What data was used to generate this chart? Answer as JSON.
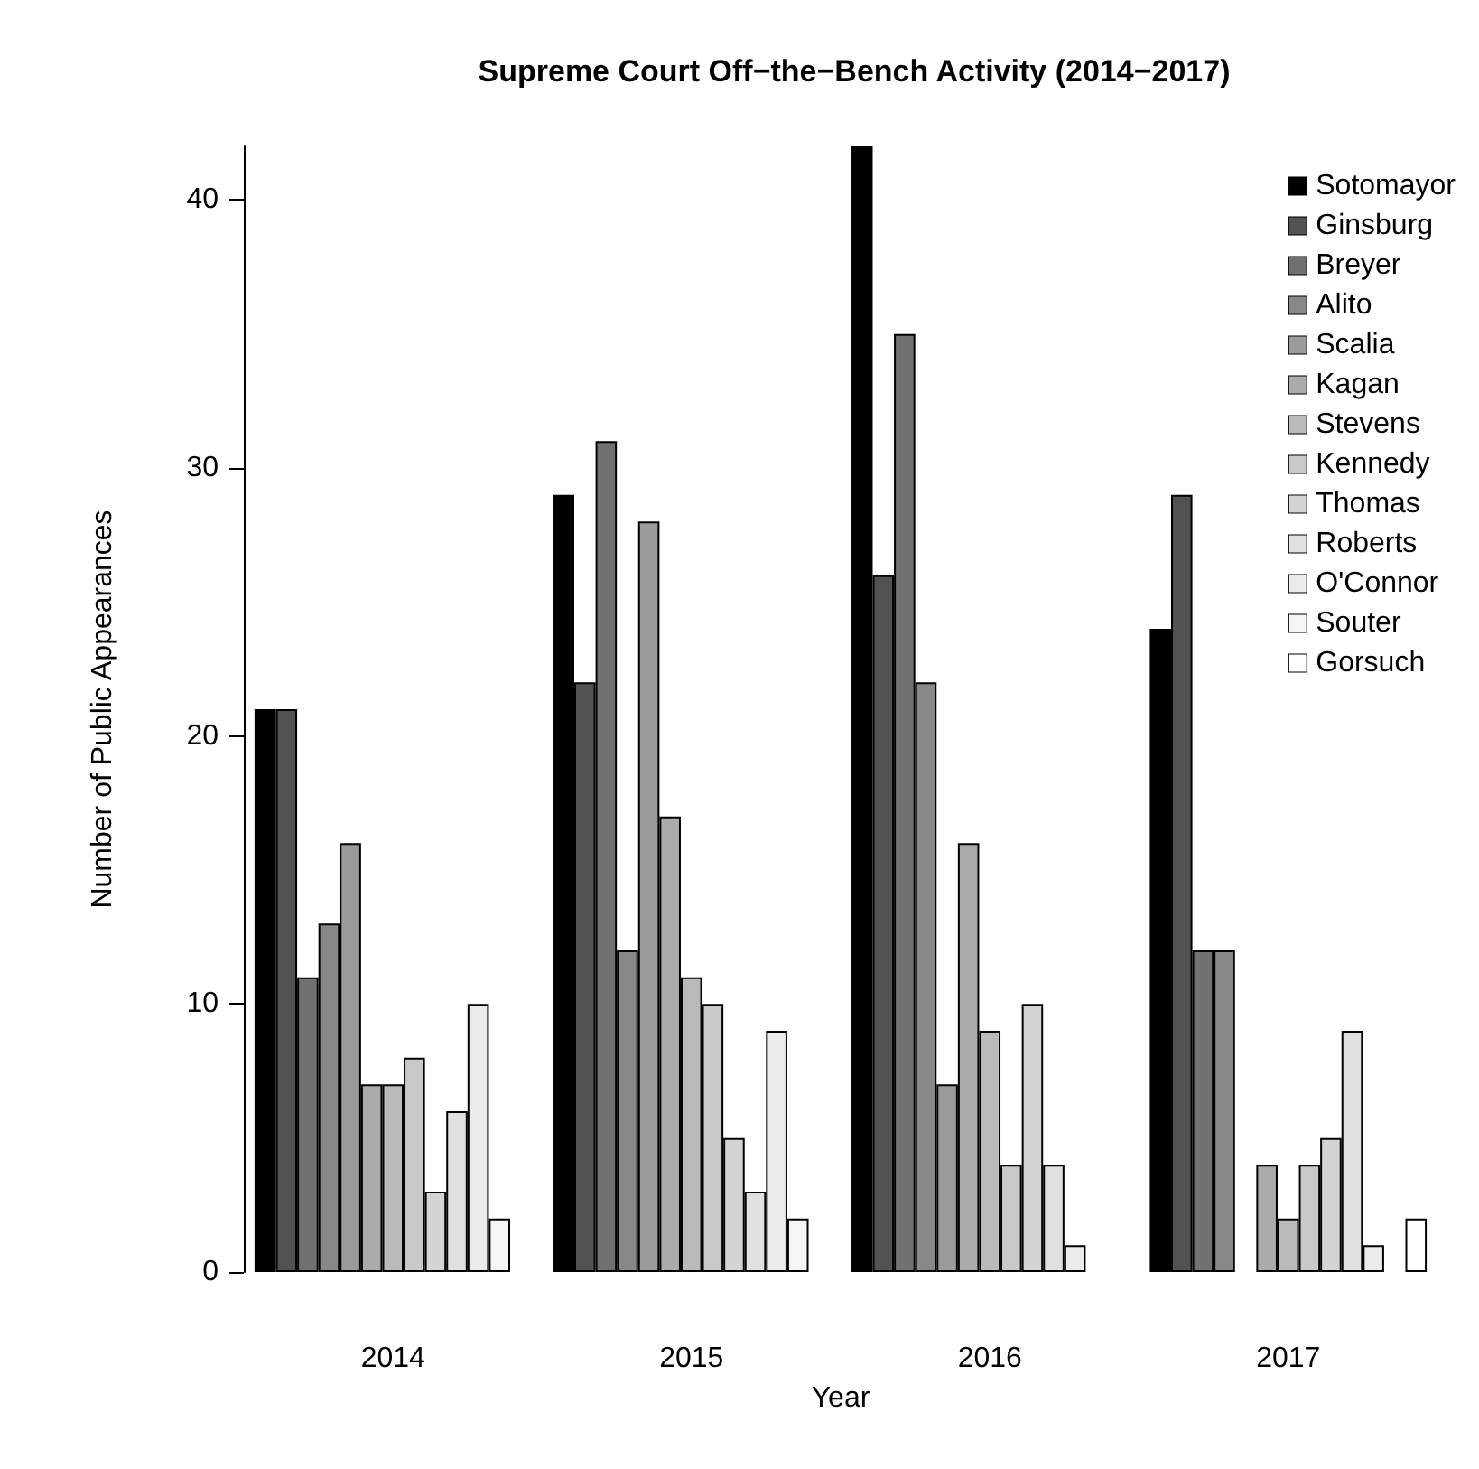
{
  "chart_data": {
    "type": "bar",
    "title": "Supreme Court Off−the−Bench Activity (2014−2017)",
    "xlabel": "Year",
    "ylabel": "Number of Public Appearances",
    "categories": [
      "2014",
      "2015",
      "2016",
      "2017"
    ],
    "series": [
      {
        "name": "Sotomayor",
        "color": "#000000",
        "values": [
          21,
          29,
          42,
          24
        ]
      },
      {
        "name": "Ginsburg",
        "color": "#525252",
        "values": [
          21,
          22,
          26,
          29
        ]
      },
      {
        "name": "Breyer",
        "color": "#717171",
        "values": [
          11,
          31,
          35,
          12
        ]
      },
      {
        "name": "Alito",
        "color": "#888888",
        "values": [
          13,
          12,
          22,
          12
        ]
      },
      {
        "name": "Scalia",
        "color": "#9b9b9b",
        "values": [
          16,
          28,
          7,
          0
        ]
      },
      {
        "name": "Kagan",
        "color": "#ababab",
        "values": [
          7,
          17,
          16,
          4
        ]
      },
      {
        "name": "Stevens",
        "color": "#bababa",
        "values": [
          7,
          11,
          9,
          2
        ]
      },
      {
        "name": "Kennedy",
        "color": "#c8c8c8",
        "values": [
          8,
          10,
          4,
          4
        ]
      },
      {
        "name": "Thomas",
        "color": "#d4d4d4",
        "values": [
          3,
          5,
          10,
          5
        ]
      },
      {
        "name": "Roberts",
        "color": "#e0e0e0",
        "values": [
          6,
          3,
          4,
          9
        ]
      },
      {
        "name": "O'Connor",
        "color": "#ebebeb",
        "values": [
          10,
          9,
          1,
          1
        ]
      },
      {
        "name": "Souter",
        "color": "#f5f5f5",
        "values": [
          2,
          2,
          0,
          0
        ]
      },
      {
        "name": "Gorsuch",
        "color": "#ffffff",
        "values": [
          0,
          0,
          0,
          2
        ]
      }
    ],
    "ylim": [
      0,
      42
    ],
    "yticks": [
      0,
      10,
      20,
      30,
      40
    ],
    "grid": false,
    "legend": "top right"
  }
}
